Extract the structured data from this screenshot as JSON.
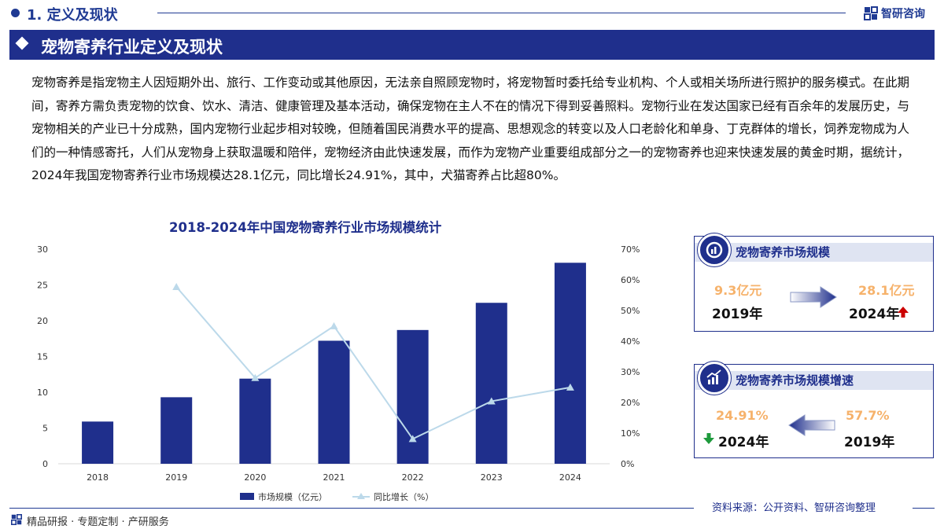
{
  "header": {
    "section": "1. 定义及现状",
    "brand": "智研咨询"
  },
  "title": "宠物寄养行业定义及现状",
  "paragraph": "宠物寄养是指宠物主人因短期外出、旅行、工作变动或其他原因，无法亲自照顾宠物时，将宠物暂时委托给专业机构、个人或相关场所进行照护的服务模式。在此期间，寄养方需负责宠物的饮食、饮水、清洁、健康管理及基本活动，确保宠物在主人不在的情况下得到妥善照料。宠物行业在发达国家已经有百余年的发展历史，与宠物相关的产业已十分成熟，国内宠物行业起步相对较晚，但随着国民消费水平的提高、思想观念的转变以及人口老龄化和单身、丁克群体的增长，饲养宠物成为人们的一种情感寄托，人们从宠物身上获取温暖和陪伴，宠物经济由此快速发展，而作为宠物产业重要组成部分之一的宠物寄养也迎来快速发展的黄金时期，据统计，2024年我国宠物寄养行业市场规模达28.1亿元，同比增长24.91%，其中，犬猫寄养占比超80%。",
  "chart_data": {
    "type": "bar",
    "title": "2018-2024年中国宠物寄养行业市场规模统计",
    "categories": [
      "2018",
      "2019",
      "2020",
      "2021",
      "2022",
      "2023",
      "2024"
    ],
    "series": [
      {
        "name": "市场规模（亿元）",
        "type": "bar",
        "axis": "left",
        "values": [
          5.9,
          9.3,
          11.9,
          17.2,
          18.7,
          22.5,
          28.1
        ]
      },
      {
        "name": "同比增长（%）",
        "type": "line",
        "axis": "right",
        "values": [
          null,
          57.7,
          28.0,
          44.9,
          8.1,
          20.4,
          24.91
        ]
      }
    ],
    "y_left": {
      "ylim": [
        0,
        30
      ],
      "ticks": [
        "0",
        "5",
        "10",
        "15",
        "20",
        "25",
        "30"
      ]
    },
    "y_right": {
      "ylim": [
        0,
        70
      ],
      "ticks": [
        "0%",
        "10%",
        "20%",
        "30%",
        "40%",
        "50%",
        "60%",
        "70%"
      ]
    },
    "legend": "bottom",
    "grid": false,
    "colors": {
      "bar": "#1f2f8c",
      "line": "#bcd9ea"
    }
  },
  "cards": {
    "market_size": {
      "title": "宠物寄养市场规模",
      "left_value": "9.3亿元",
      "left_year": "2019年",
      "right_value": "28.1亿元",
      "right_year": "2024年",
      "icon": "chart-growth-icon",
      "trend_icon": "red-up-arrow-icon"
    },
    "growth_rate": {
      "title": "宠物寄养市场规模增速",
      "left_value": "24.91%",
      "left_year": "2024年",
      "right_value": "57.7%",
      "right_year": "2019年",
      "icon": "bar-growth-icon",
      "trend_icon": "green-down-arrow-icon"
    }
  },
  "source": "资料来源：公开资料、智研咨询整理",
  "footer": "精品研报 · 专题定制 · 产研服务",
  "colors": {
    "primary": "#1f2f8c",
    "accent": "#f6b26b",
    "up": "#cc0000",
    "down": "#1e9a3c"
  }
}
